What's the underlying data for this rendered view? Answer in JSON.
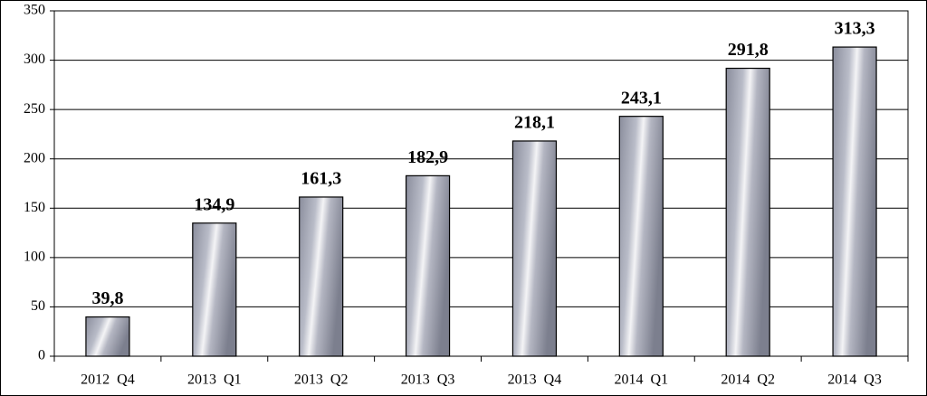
{
  "chart_data": {
    "type": "bar",
    "categories": [
      "2012  Q4",
      "2013  Q1",
      "2013  Q2",
      "2013  Q3",
      "2013  Q4",
      "2014  Q1",
      "2014  Q2",
      "2014  Q3"
    ],
    "values": [
      39.8,
      134.9,
      161.3,
      182.9,
      218.1,
      243.1,
      291.8,
      313.3
    ],
    "value_labels": [
      "39,8",
      "134,9",
      "161,3",
      "182,9",
      "218,1",
      "243,1",
      "291,8",
      "313,3"
    ],
    "ylim": [
      0,
      350
    ],
    "yticks": [
      0,
      50,
      100,
      150,
      200,
      250,
      300,
      350
    ],
    "grid": true
  }
}
